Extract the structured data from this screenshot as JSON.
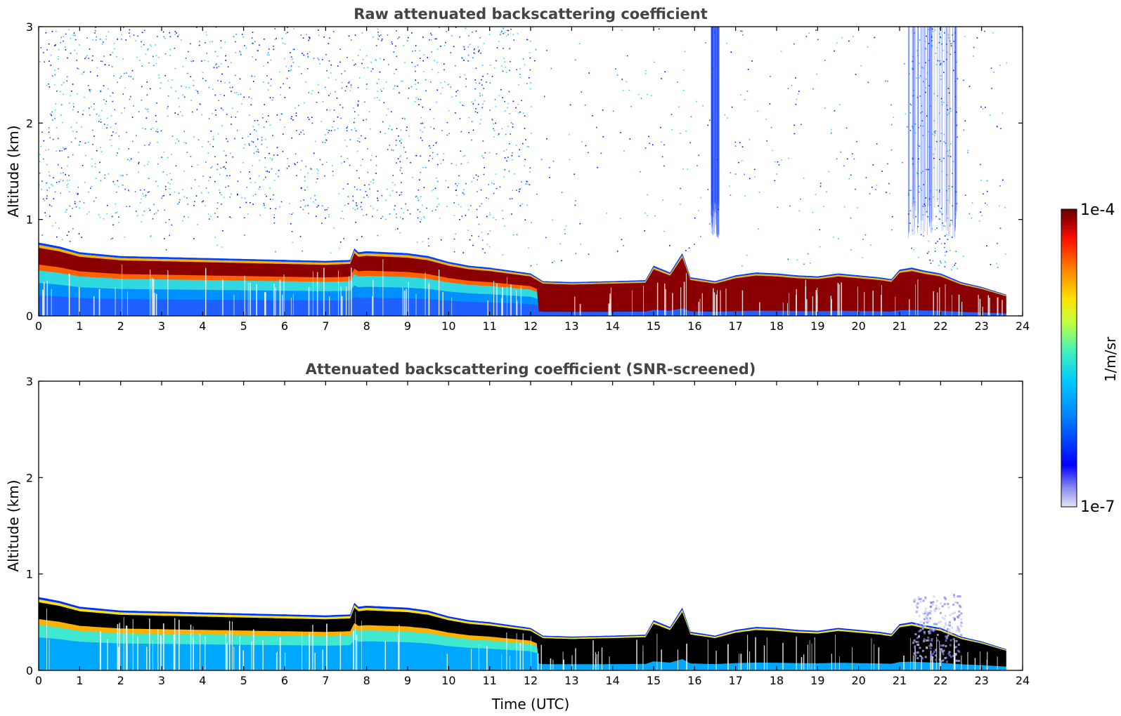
{
  "chart_data": [
    {
      "type": "heatmap",
      "title": "Raw attenuated backscattering coefficient",
      "xlabel": "",
      "ylabel": "Altitude (km)",
      "xlim": [
        0,
        24
      ],
      "ylim": [
        0,
        3
      ],
      "xticks": [
        "0",
        "1",
        "2",
        "3",
        "4",
        "5",
        "6",
        "7",
        "8",
        "9",
        "10",
        "11",
        "12",
        "13",
        "14",
        "15",
        "16",
        "17",
        "18",
        "19",
        "20",
        "21",
        "22",
        "23",
        "24"
      ],
      "yticks": [
        "0",
        "1",
        "2",
        "3"
      ],
      "screened": false,
      "layer_top_km": [
        [
          0,
          0.76
        ],
        [
          0.5,
          0.72
        ],
        [
          1,
          0.66
        ],
        [
          2,
          0.62
        ],
        [
          3,
          0.61
        ],
        [
          4,
          0.6
        ],
        [
          5,
          0.59
        ],
        [
          6,
          0.58
        ],
        [
          7,
          0.57
        ],
        [
          7.6,
          0.58
        ],
        [
          7.7,
          0.7
        ],
        [
          7.8,
          0.66
        ],
        [
          8,
          0.67
        ],
        [
          9,
          0.65
        ],
        [
          9.5,
          0.62
        ],
        [
          10,
          0.56
        ],
        [
          10.5,
          0.52
        ],
        [
          11,
          0.5
        ],
        [
          12,
          0.44
        ],
        [
          12.3,
          0.36
        ],
        [
          13,
          0.35
        ],
        [
          14,
          0.36
        ],
        [
          14.8,
          0.37
        ],
        [
          15,
          0.52
        ],
        [
          15.4,
          0.45
        ],
        [
          15.7,
          0.65
        ],
        [
          15.9,
          0.4
        ],
        [
          16.5,
          0.36
        ],
        [
          17,
          0.42
        ],
        [
          17.5,
          0.45
        ],
        [
          18,
          0.44
        ],
        [
          18.5,
          0.42
        ],
        [
          19,
          0.41
        ],
        [
          19.5,
          0.44
        ],
        [
          20,
          0.42
        ],
        [
          20.5,
          0.4
        ],
        [
          20.8,
          0.38
        ],
        [
          21.0,
          0.48
        ],
        [
          21.3,
          0.5
        ],
        [
          21.6,
          0.47
        ],
        [
          22,
          0.44
        ],
        [
          22.5,
          0.35
        ],
        [
          23,
          0.3
        ],
        [
          23.6,
          0.22
        ]
      ],
      "data_end_hour": 23.6,
      "noise_gaps_hours": [
        [
          16.4,
          16.6
        ],
        [
          21.2,
          22.4
        ]
      ]
    },
    {
      "type": "heatmap",
      "title": "Attenuated backscattering coefficient (SNR-screened)",
      "xlabel": "Time (UTC)",
      "ylabel": "Altitude (km)",
      "xlim": [
        0,
        24
      ],
      "ylim": [
        0,
        3
      ],
      "xticks": [
        "0",
        "1",
        "2",
        "3",
        "4",
        "5",
        "6",
        "7",
        "8",
        "9",
        "10",
        "11",
        "12",
        "13",
        "14",
        "15",
        "16",
        "17",
        "18",
        "19",
        "20",
        "21",
        "22",
        "23",
        "24"
      ],
      "yticks": [
        "0",
        "1",
        "2",
        "3"
      ],
      "screened": true
    }
  ],
  "colorbar": {
    "max_label": "1e-4",
    "min_label": "1e-7",
    "unit": "1/m/sr",
    "colors": [
      "#e4e4f4",
      "#9090f0",
      "#0000ff",
      "#0080ff",
      "#00c8ff",
      "#40f0c0",
      "#c0ff40",
      "#ffe000",
      "#ff8000",
      "#ff1000",
      "#a00000",
      "#6a0000"
    ]
  }
}
